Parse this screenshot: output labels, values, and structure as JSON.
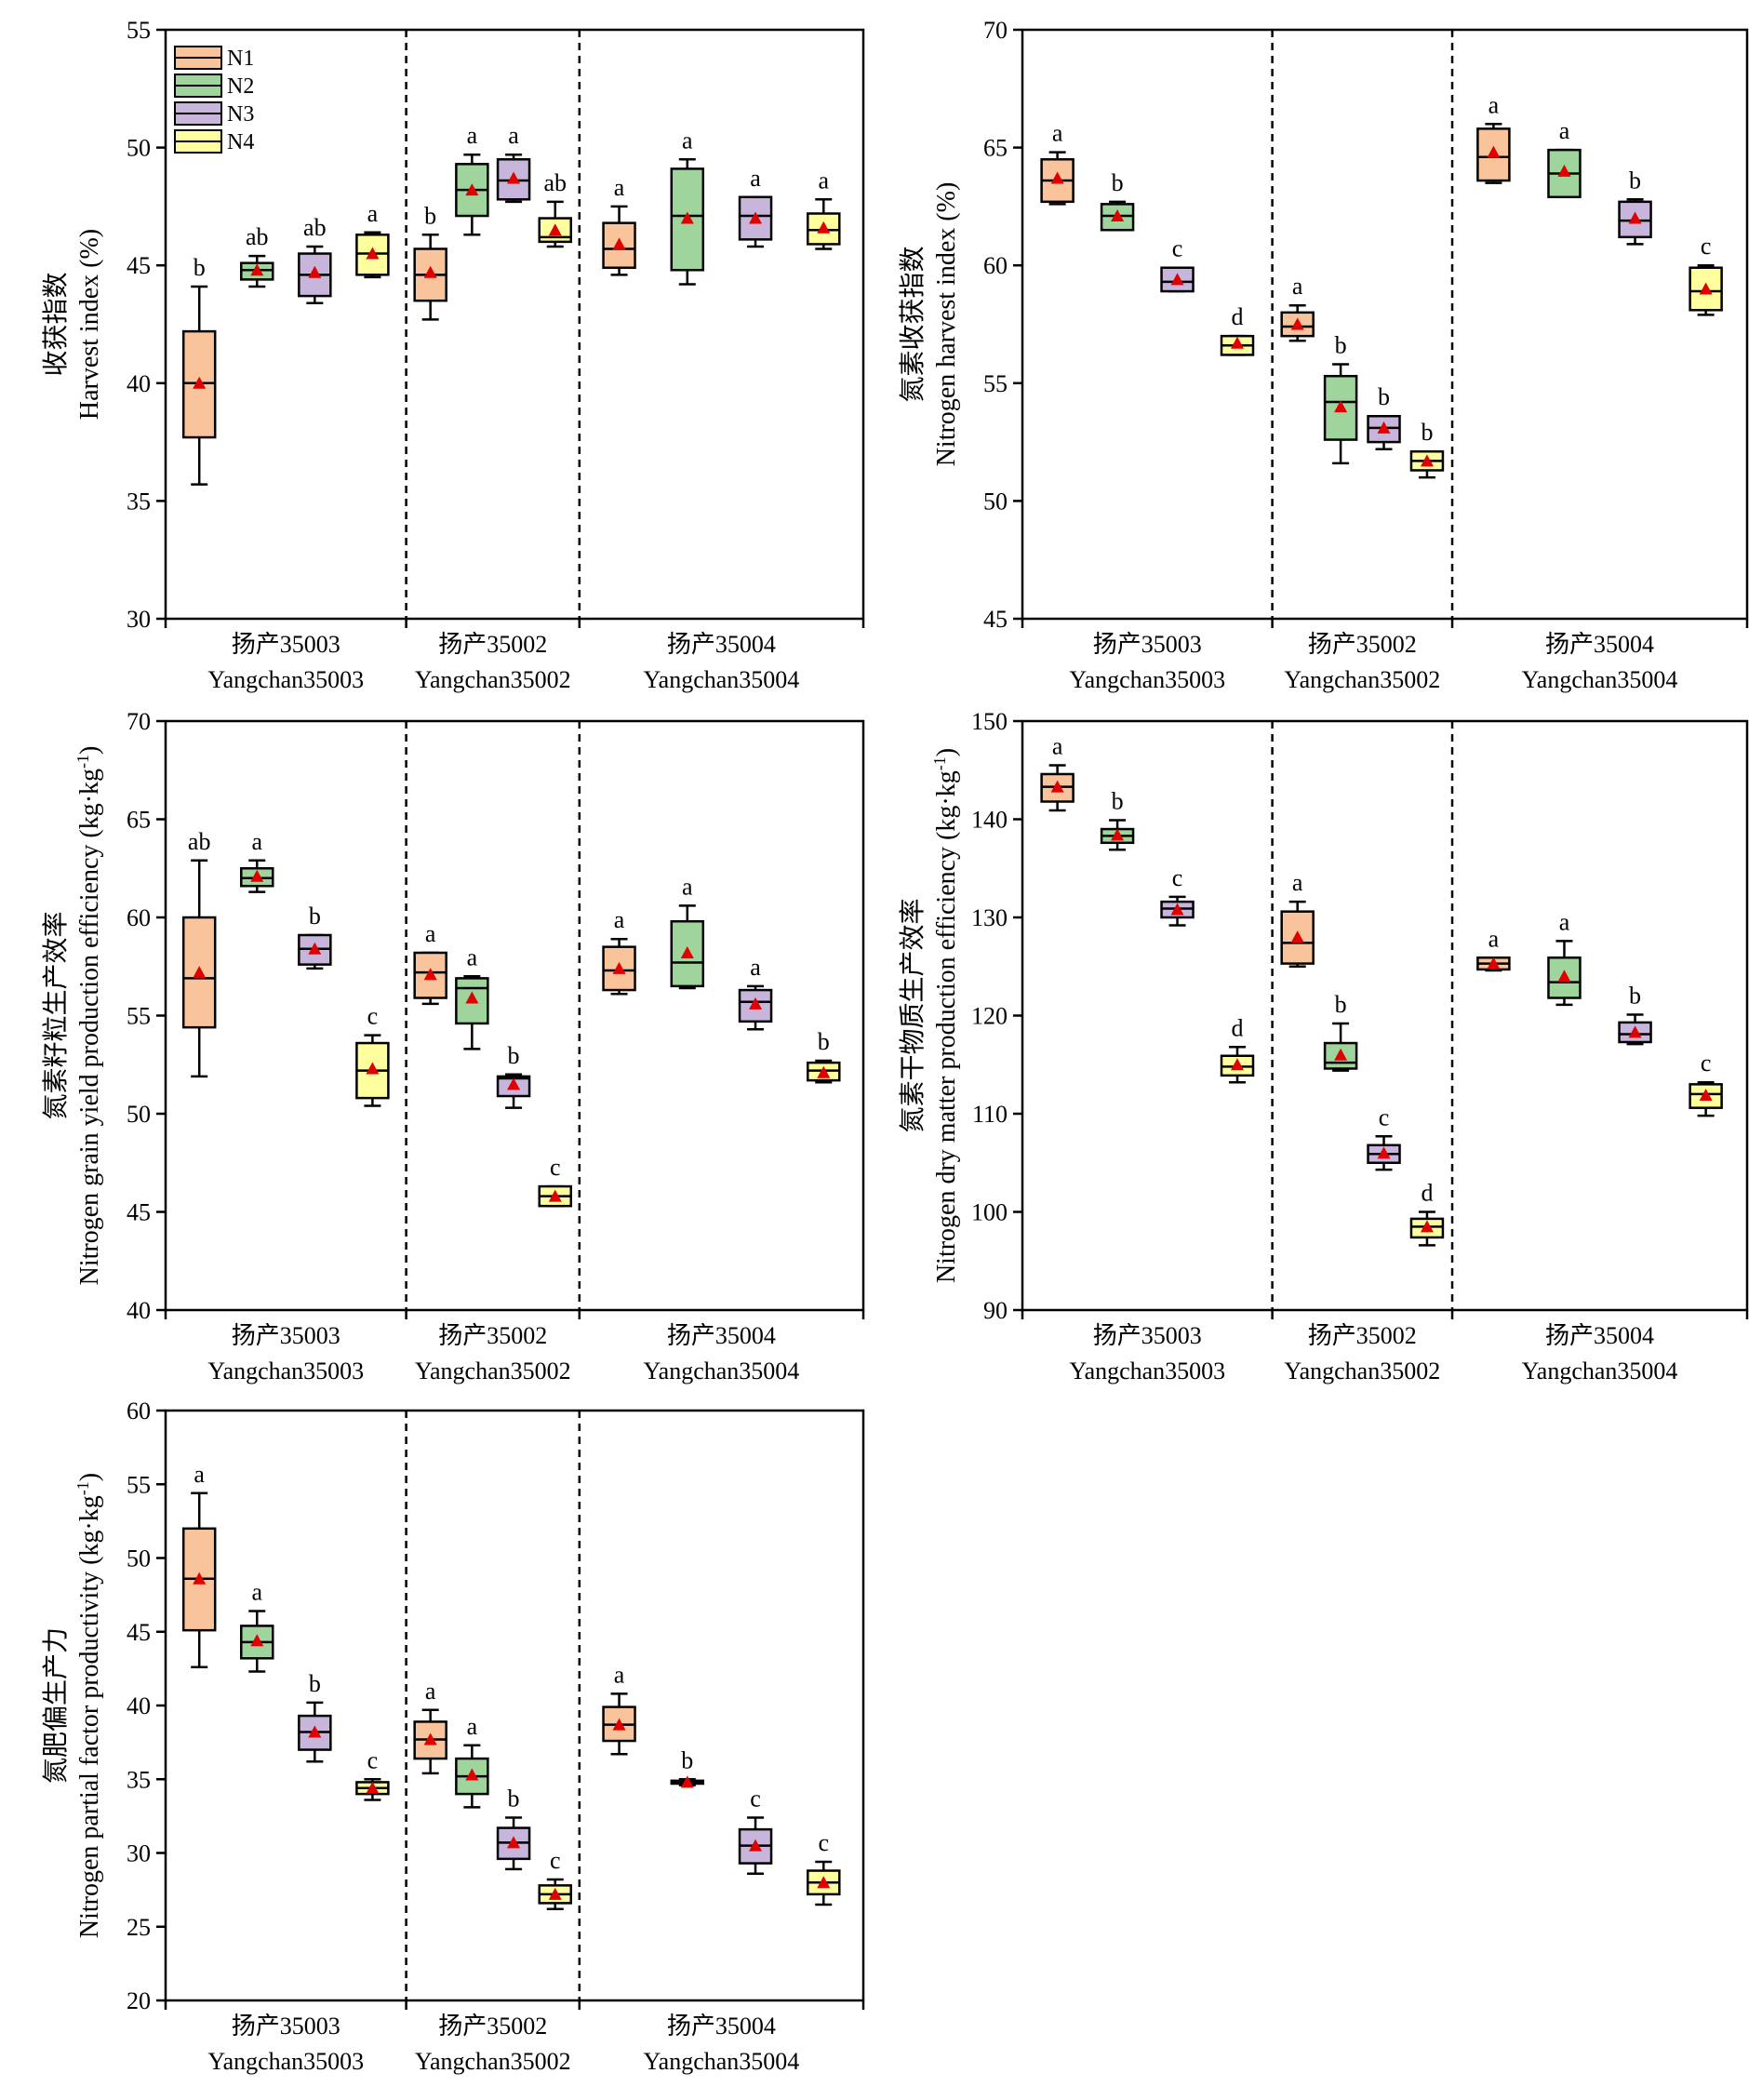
{
  "chart_data": [
    {
      "type": "box",
      "ylabel_cn": "收获指数",
      "ylabel_en": "Harvest index (%)",
      "ylim": [
        30,
        55
      ],
      "yticks": [
        30,
        35,
        40,
        45,
        50,
        55
      ],
      "groups": [
        {
          "label_cn": "扬产35003",
          "label_en": "Yangchan35003"
        },
        {
          "label_cn": "扬产35002",
          "label_en": "Yangchan35002"
        },
        {
          "label_cn": "扬产35004",
          "label_en": "Yangchan35004"
        }
      ],
      "legend": {
        "position": "top-left",
        "entries": [
          "N1",
          "N2",
          "N3",
          "N4"
        ]
      },
      "boxes": [
        [
          {
            "series": "N1",
            "min": 35.7,
            "q1": 37.7,
            "median": 40.0,
            "q3": 42.2,
            "max": 44.1,
            "mean": 40.0,
            "letter": "b"
          },
          {
            "series": "N2",
            "min": 44.1,
            "q1": 44.4,
            "median": 44.8,
            "q3": 45.1,
            "max": 45.4,
            "mean": 44.8,
            "letter": "ab"
          },
          {
            "series": "N3",
            "min": 43.4,
            "q1": 43.7,
            "median": 44.6,
            "q3": 45.5,
            "max": 45.8,
            "mean": 44.7,
            "letter": "ab"
          },
          {
            "series": "N4",
            "min": 44.5,
            "q1": 44.6,
            "median": 45.5,
            "q3": 46.3,
            "max": 46.4,
            "mean": 45.5,
            "letter": "a"
          }
        ],
        [
          {
            "series": "N1",
            "min": 42.7,
            "q1": 43.5,
            "median": 44.6,
            "q3": 45.7,
            "max": 46.3,
            "mean": 44.7,
            "letter": "b"
          },
          {
            "series": "N2",
            "min": 46.3,
            "q1": 47.1,
            "median": 48.2,
            "q3": 49.3,
            "max": 49.7,
            "mean": 48.2,
            "letter": "a"
          },
          {
            "series": "N3",
            "min": 47.7,
            "q1": 47.8,
            "median": 48.6,
            "q3": 49.5,
            "max": 49.7,
            "mean": 48.7,
            "letter": "a"
          },
          {
            "series": "N4",
            "min": 45.8,
            "q1": 46.0,
            "median": 46.2,
            "q3": 47.0,
            "max": 47.7,
            "mean": 46.5,
            "letter": "ab"
          }
        ],
        [
          {
            "series": "N1",
            "min": 44.6,
            "q1": 44.9,
            "median": 45.7,
            "q3": 46.8,
            "max": 47.5,
            "mean": 45.9,
            "letter": "a"
          },
          {
            "series": "N2",
            "min": 44.2,
            "q1": 44.8,
            "median": 47.1,
            "q3": 49.1,
            "max": 49.5,
            "mean": 47.0,
            "letter": "a"
          },
          {
            "series": "N3",
            "min": 45.8,
            "q1": 46.1,
            "median": 47.1,
            "q3": 47.9,
            "max": 47.9,
            "mean": 47.0,
            "letter": "a"
          },
          {
            "series": "N4",
            "min": 45.7,
            "q1": 45.9,
            "median": 46.5,
            "q3": 47.2,
            "max": 47.8,
            "mean": 46.6,
            "letter": "a"
          }
        ]
      ]
    },
    {
      "type": "box",
      "ylabel_cn": "氮素收获指数",
      "ylabel_en": "Nitrogen harvest index (%)",
      "ylim": [
        45,
        70
      ],
      "yticks": [
        45,
        50,
        55,
        60,
        65,
        70
      ],
      "groups": [
        {
          "label_cn": "扬产35003",
          "label_en": "Yangchan35003"
        },
        {
          "label_cn": "扬产35002",
          "label_en": "Yangchan35002"
        },
        {
          "label_cn": "扬产35004",
          "label_en": "Yangchan35004"
        }
      ],
      "boxes": [
        [
          {
            "series": "N1",
            "min": 62.6,
            "q1": 62.7,
            "median": 63.6,
            "q3": 64.5,
            "max": 64.8,
            "mean": 63.7,
            "letter": "a"
          },
          {
            "series": "N2",
            "min": 61.5,
            "q1": 61.5,
            "median": 62.1,
            "q3": 62.6,
            "max": 62.7,
            "mean": 62.1,
            "letter": "b"
          },
          {
            "series": "N3",
            "min": 58.9,
            "q1": 58.9,
            "median": 59.3,
            "q3": 59.9,
            "max": 59.9,
            "mean": 59.4,
            "letter": "c"
          },
          {
            "series": "N4",
            "min": 56.2,
            "q1": 56.2,
            "median": 56.6,
            "q3": 57.0,
            "max": 57.0,
            "mean": 56.7,
            "letter": "d"
          }
        ],
        [
          {
            "series": "N1",
            "min": 56.8,
            "q1": 57.0,
            "median": 57.4,
            "q3": 58.0,
            "max": 58.3,
            "mean": 57.5,
            "letter": "a"
          },
          {
            "series": "N2",
            "min": 51.6,
            "q1": 52.6,
            "median": 54.2,
            "q3": 55.3,
            "max": 55.8,
            "mean": 54.0,
            "letter": "b"
          },
          {
            "series": "N3",
            "min": 52.2,
            "q1": 52.5,
            "median": 53.1,
            "q3": 53.6,
            "max": 53.6,
            "mean": 53.1,
            "letter": "b"
          },
          {
            "series": "N4",
            "min": 51.0,
            "q1": 51.3,
            "median": 51.7,
            "q3": 52.1,
            "max": 52.1,
            "mean": 51.7,
            "letter": "b"
          }
        ],
        [
          {
            "series": "N1",
            "min": 63.5,
            "q1": 63.6,
            "median": 64.6,
            "q3": 65.8,
            "max": 66.0,
            "mean": 64.8,
            "letter": "a"
          },
          {
            "series": "N2",
            "min": 62.9,
            "q1": 62.9,
            "median": 63.9,
            "q3": 64.9,
            "max": 64.9,
            "mean": 64.0,
            "letter": "a"
          },
          {
            "series": "N3",
            "min": 60.9,
            "q1": 61.2,
            "median": 61.9,
            "q3": 62.7,
            "max": 62.8,
            "mean": 62.0,
            "letter": "b"
          },
          {
            "series": "N4",
            "min": 57.9,
            "q1": 58.1,
            "median": 58.9,
            "q3": 59.9,
            "max": 60.0,
            "mean": 59.0,
            "letter": "c"
          }
        ]
      ]
    },
    {
      "type": "box",
      "ylabel_cn": "氮素籽粒生产效率",
      "ylabel_en": "Nitrogen grain yield production efficiency (kg·kg",
      "ylabel_sup": "-1",
      "ylabel_close": ")",
      "ylim": [
        40,
        70
      ],
      "yticks": [
        40,
        45,
        50,
        55,
        60,
        65,
        70
      ],
      "groups": [
        {
          "label_cn": "扬产35003",
          "label_en": "Yangchan35003"
        },
        {
          "label_cn": "扬产35002",
          "label_en": "Yangchan35002"
        },
        {
          "label_cn": "扬产35004",
          "label_en": "Yangchan35004"
        }
      ],
      "boxes": [
        [
          {
            "series": "N1",
            "min": 51.9,
            "q1": 54.4,
            "median": 56.9,
            "q3": 60.0,
            "max": 62.9,
            "mean": 57.2,
            "letter": "ab"
          },
          {
            "series": "N2",
            "min": 61.3,
            "q1": 61.6,
            "median": 62.0,
            "q3": 62.5,
            "max": 62.9,
            "mean": 62.1,
            "letter": "a"
          },
          {
            "series": "N3",
            "min": 57.4,
            "q1": 57.6,
            "median": 58.4,
            "q3": 59.1,
            "max": 59.1,
            "mean": 58.4,
            "letter": "b"
          },
          {
            "series": "N4",
            "min": 50.4,
            "q1": 50.8,
            "median": 52.2,
            "q3": 53.6,
            "max": 54.0,
            "mean": 52.3,
            "letter": "c"
          }
        ],
        [
          {
            "series": "N1",
            "min": 55.6,
            "q1": 55.9,
            "median": 57.2,
            "q3": 58.2,
            "max": 58.2,
            "mean": 57.1,
            "letter": "a"
          },
          {
            "series": "N2",
            "min": 53.3,
            "q1": 54.6,
            "median": 56.4,
            "q3": 56.9,
            "max": 57.0,
            "mean": 55.9,
            "letter": "a"
          },
          {
            "series": "N3",
            "min": 50.3,
            "q1": 50.9,
            "median": 51.8,
            "q3": 51.9,
            "max": 52.0,
            "mean": 51.5,
            "letter": "b"
          },
          {
            "series": "N4",
            "min": 45.3,
            "q1": 45.3,
            "median": 45.8,
            "q3": 46.3,
            "max": 46.3,
            "mean": 45.8,
            "letter": "c"
          }
        ],
        [
          {
            "series": "N1",
            "min": 56.1,
            "q1": 56.3,
            "median": 57.3,
            "q3": 58.5,
            "max": 58.9,
            "mean": 57.4,
            "letter": "a"
          },
          {
            "series": "N2",
            "min": 56.4,
            "q1": 56.5,
            "median": 57.7,
            "q3": 59.8,
            "max": 60.6,
            "mean": 58.2,
            "letter": "a"
          },
          {
            "series": "N3",
            "min": 54.3,
            "q1": 54.7,
            "median": 55.7,
            "q3": 56.3,
            "max": 56.5,
            "mean": 55.6,
            "letter": "a"
          },
          {
            "series": "N4",
            "min": 51.6,
            "q1": 51.7,
            "median": 52.2,
            "q3": 52.6,
            "max": 52.7,
            "mean": 52.1,
            "letter": "b"
          }
        ]
      ]
    },
    {
      "type": "box",
      "ylabel_cn": "氮素干物质生产效率",
      "ylabel_en": "Nitrogen dry matter production efficiency (kg·kg",
      "ylabel_sup": "-1",
      "ylabel_close": ")",
      "ylim": [
        90,
        150
      ],
      "yticks": [
        90,
        100,
        110,
        120,
        130,
        140,
        150
      ],
      "groups": [
        {
          "label_cn": "扬产35003",
          "label_en": "Yangchan35003"
        },
        {
          "label_cn": "扬产35002",
          "label_en": "Yangchan35002"
        },
        {
          "label_cn": "扬产35004",
          "label_en": "Yangchan35004"
        }
      ],
      "boxes": [
        [
          {
            "series": "N1",
            "min": 140.9,
            "q1": 141.8,
            "median": 143.3,
            "q3": 144.6,
            "max": 145.5,
            "mean": 143.3,
            "letter": "a"
          },
          {
            "series": "N2",
            "min": 136.9,
            "q1": 137.6,
            "median": 138.3,
            "q3": 139.0,
            "max": 139.9,
            "mean": 138.4,
            "letter": "b"
          },
          {
            "series": "N3",
            "min": 129.2,
            "q1": 130.0,
            "median": 130.9,
            "q3": 131.6,
            "max": 132.1,
            "mean": 130.8,
            "letter": "c"
          },
          {
            "series": "N4",
            "min": 113.2,
            "q1": 113.9,
            "median": 114.8,
            "q3": 115.9,
            "max": 116.8,
            "mean": 115.0,
            "letter": "d"
          }
        ],
        [
          {
            "series": "N1",
            "min": 125.0,
            "q1": 125.3,
            "median": 127.4,
            "q3": 130.6,
            "max": 131.6,
            "mean": 128.0,
            "letter": "a"
          },
          {
            "series": "N2",
            "min": 114.4,
            "q1": 114.6,
            "median": 115.2,
            "q3": 117.2,
            "max": 119.2,
            "mean": 116.0,
            "letter": "b"
          },
          {
            "series": "N3",
            "min": 104.3,
            "q1": 105.0,
            "median": 105.9,
            "q3": 106.8,
            "max": 107.7,
            "mean": 106.0,
            "letter": "c"
          },
          {
            "series": "N4",
            "min": 96.6,
            "q1": 97.4,
            "median": 98.5,
            "q3": 99.3,
            "max": 100.0,
            "mean": 98.5,
            "letter": "d"
          }
        ],
        [
          {
            "series": "N1",
            "min": 124.6,
            "q1": 124.7,
            "median": 125.3,
            "q3": 125.9,
            "max": 125.9,
            "mean": 125.3,
            "letter": "a"
          },
          {
            "series": "N2",
            "min": 121.1,
            "q1": 121.8,
            "median": 123.4,
            "q3": 125.9,
            "max": 127.6,
            "mean": 124.0,
            "letter": "a"
          },
          {
            "series": "N3",
            "min": 117.1,
            "q1": 117.3,
            "median": 118.1,
            "q3": 119.3,
            "max": 120.1,
            "mean": 118.3,
            "letter": "b"
          },
          {
            "series": "N4",
            "min": 109.8,
            "q1": 110.6,
            "median": 112.0,
            "q3": 113.0,
            "max": 113.2,
            "mean": 111.9,
            "letter": "c"
          }
        ]
      ]
    },
    {
      "type": "box",
      "ylabel_cn": "氮肥偏生产力",
      "ylabel_en": "Nitrogen partial factor productivity (kg·kg",
      "ylabel_sup": "-1",
      "ylabel_close": ")",
      "ylim": [
        20,
        60
      ],
      "yticks": [
        20,
        25,
        30,
        35,
        40,
        45,
        50,
        55,
        60
      ],
      "groups": [
        {
          "label_cn": "扬产35003",
          "label_en": "Yangchan35003"
        },
        {
          "label_cn": "扬产35002",
          "label_en": "Yangchan35002"
        },
        {
          "label_cn": "扬产35004",
          "label_en": "Yangchan35004"
        }
      ],
      "boxes": [
        [
          {
            "series": "N1",
            "min": 42.6,
            "q1": 45.1,
            "median": 48.6,
            "q3": 52.0,
            "max": 54.4,
            "mean": 48.6,
            "letter": "a"
          },
          {
            "series": "N2",
            "min": 42.3,
            "q1": 43.2,
            "median": 44.3,
            "q3": 45.4,
            "max": 46.4,
            "mean": 44.4,
            "letter": "a"
          },
          {
            "series": "N3",
            "min": 36.2,
            "q1": 37.0,
            "median": 38.2,
            "q3": 39.3,
            "max": 40.2,
            "mean": 38.2,
            "letter": "b"
          },
          {
            "series": "N4",
            "min": 33.6,
            "q1": 34.0,
            "median": 34.4,
            "q3": 34.8,
            "max": 35.0,
            "mean": 34.4,
            "letter": "c"
          }
        ],
        [
          {
            "series": "N1",
            "min": 35.4,
            "q1": 36.4,
            "median": 37.7,
            "q3": 38.9,
            "max": 39.7,
            "mean": 37.7,
            "letter": "a"
          },
          {
            "series": "N2",
            "min": 33.1,
            "q1": 34.0,
            "median": 35.2,
            "q3": 36.4,
            "max": 37.3,
            "mean": 35.3,
            "letter": "a"
          },
          {
            "series": "N3",
            "min": 28.9,
            "q1": 29.6,
            "median": 30.7,
            "q3": 31.7,
            "max": 32.4,
            "mean": 30.7,
            "letter": "b"
          },
          {
            "series": "N4",
            "min": 26.2,
            "q1": 26.6,
            "median": 27.2,
            "q3": 27.8,
            "max": 28.2,
            "mean": 27.2,
            "letter": "c"
          }
        ],
        [
          {
            "series": "N1",
            "min": 36.7,
            "q1": 37.6,
            "median": 38.7,
            "q3": 39.9,
            "max": 40.8,
            "mean": 38.7,
            "letter": "a"
          },
          {
            "series": "N2",
            "min": 34.6,
            "q1": 34.7,
            "median": 34.8,
            "q3": 34.9,
            "max": 35.0,
            "mean": 34.8,
            "letter": "b"
          },
          {
            "series": "N3",
            "min": 28.6,
            "q1": 29.3,
            "median": 30.5,
            "q3": 31.6,
            "max": 32.4,
            "mean": 30.5,
            "letter": "c"
          },
          {
            "series": "N4",
            "min": 26.5,
            "q1": 27.2,
            "median": 28.0,
            "q3": 28.8,
            "max": 29.4,
            "mean": 28.0,
            "letter": "c"
          }
        ]
      ]
    }
  ],
  "colors": {
    "N1": "#f9c39c",
    "N2": "#9fd49c",
    "N3": "#c7b5dc",
    "N4": "#ffff9e",
    "mean_marker": "#e00000",
    "axis": "#000000"
  }
}
